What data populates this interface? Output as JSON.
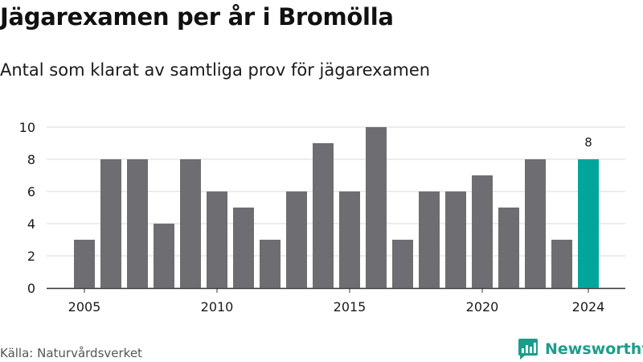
{
  "title": "Jägarexamen per år i Bromölla",
  "subtitle": "Antal som klarat av samtliga prov för jägarexamen",
  "source": "Källa: Naturvårdsverket",
  "brand": {
    "name": "Newsworthy",
    "icon": "newsworthy-logo-icon",
    "color": "#1a9e8c"
  },
  "colors": {
    "bar": "#6e6d72",
    "highlight": "#00a69c",
    "grid": "#d9d9d9",
    "axis": "#333333"
  },
  "chart_data": {
    "type": "bar",
    "title": "Jägarexamen per år i Bromölla",
    "subtitle": "Antal som klarat av samtliga prov för jägarexamen",
    "xlabel": "",
    "ylabel": "",
    "x": [
      2005,
      2006,
      2007,
      2008,
      2009,
      2010,
      2011,
      2012,
      2013,
      2014,
      2015,
      2016,
      2017,
      2018,
      2019,
      2020,
      2021,
      2022,
      2023,
      2024
    ],
    "values": [
      3,
      8,
      8,
      4,
      8,
      6,
      5,
      3,
      6,
      9,
      6,
      10,
      3,
      6,
      6,
      7,
      5,
      8,
      3,
      8
    ],
    "ylim": [
      0,
      10
    ],
    "yticks": [
      0,
      2,
      4,
      6,
      8,
      10
    ],
    "xticks": [
      2005,
      2010,
      2015,
      2020,
      2024
    ],
    "highlight": {
      "x": 2024,
      "label": "8"
    },
    "grid": true,
    "legend": "none"
  }
}
